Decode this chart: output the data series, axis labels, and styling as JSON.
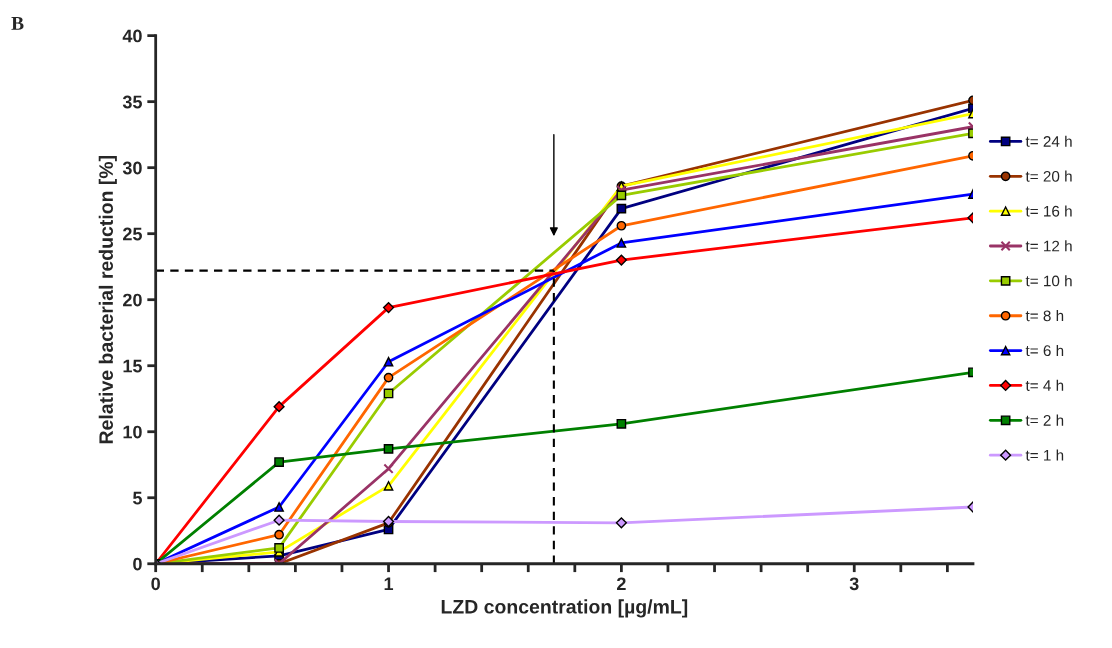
{
  "chart_data": {
    "type": "line",
    "xlabel": "LZD concentration [µg/mL]",
    "ylabel": "Relative bacterial reduction [%]",
    "annotations": [
      "B"
    ],
    "x": [
      0,
      0.53,
      1,
      2,
      3.51
    ],
    "xlim": [
      0,
      3.51
    ],
    "ylim": [
      0,
      40
    ],
    "xticks": [
      0,
      {
        "value": 0.2,
        "label": null
      },
      {
        "value": 0.4,
        "label": null
      },
      {
        "value": 0.6,
        "label": null
      },
      {
        "value": 0.8,
        "label": null
      },
      1,
      {
        "value": 1.2,
        "label": null
      },
      {
        "value": 1.4,
        "label": null
      },
      {
        "value": 1.6,
        "label": null
      },
      {
        "value": 1.8,
        "label": null
      },
      2,
      {
        "value": 2.2,
        "label": null
      },
      {
        "value": 2.4,
        "label": null
      },
      {
        "value": 2.6,
        "label": null
      },
      {
        "value": 2.8,
        "label": null
      },
      3,
      {
        "value": 3.2,
        "label": null
      },
      {
        "value": 3.4,
        "label": null
      }
    ],
    "yticks": [
      0,
      5,
      10,
      15,
      20,
      25,
      30,
      35,
      40
    ],
    "grid": false,
    "legend": "right",
    "ref_lines": [
      {
        "axis": "x",
        "value": 1.71,
        "line_style": "dashed",
        "color": "#000000"
      },
      {
        "axis": "y",
        "value": 22.2,
        "line_style": "dashed",
        "color": "#000000"
      }
    ],
    "series": [
      {
        "name": "t= 24 h",
        "color": "#000080",
        "marker": "square",
        "values": [
          0,
          0.6,
          2.6,
          26.9,
          34.5
        ]
      },
      {
        "name": "t= 20 h",
        "color": "#993300",
        "marker": "circle",
        "values": [
          0,
          0,
          3.1,
          28.6,
          35.1
        ]
      },
      {
        "name": "t= 16 h",
        "color": "#ffff00",
        "marker": "triangle",
        "values": [
          0,
          0.9,
          5.9,
          28.6,
          34.1
        ]
      },
      {
        "name": "t= 12 h",
        "color": "#993366",
        "marker": "cross",
        "values": [
          0,
          0,
          7.2,
          28.3,
          33.1
        ]
      },
      {
        "name": "t= 10 h",
        "color": "#99cc00",
        "marker": "square",
        "values": [
          0,
          1.2,
          12.9,
          27.9,
          32.6
        ]
      },
      {
        "name": "t= 8 h",
        "color": "#ff6600",
        "marker": "circle",
        "values": [
          0,
          2.2,
          14.1,
          25.6,
          30.9
        ]
      },
      {
        "name": "t= 6 h",
        "color": "#0000ff",
        "marker": "triangle",
        "values": [
          0,
          4.3,
          15.3,
          24.3,
          28.0
        ]
      },
      {
        "name": "t= 4 h",
        "color": "#ff0000",
        "marker": "diamond",
        "values": [
          0,
          11.9,
          19.4,
          23.0,
          26.2
        ]
      },
      {
        "name": "t= 2 h",
        "color": "#008000",
        "marker": "square",
        "values": [
          0,
          7.7,
          8.7,
          10.6,
          14.5
        ]
      },
      {
        "name": "t= 1 h",
        "color": "#cc99ff",
        "marker": "diamond",
        "values": [
          0,
          3.3,
          3.2,
          3.1,
          4.3
        ]
      }
    ]
  }
}
